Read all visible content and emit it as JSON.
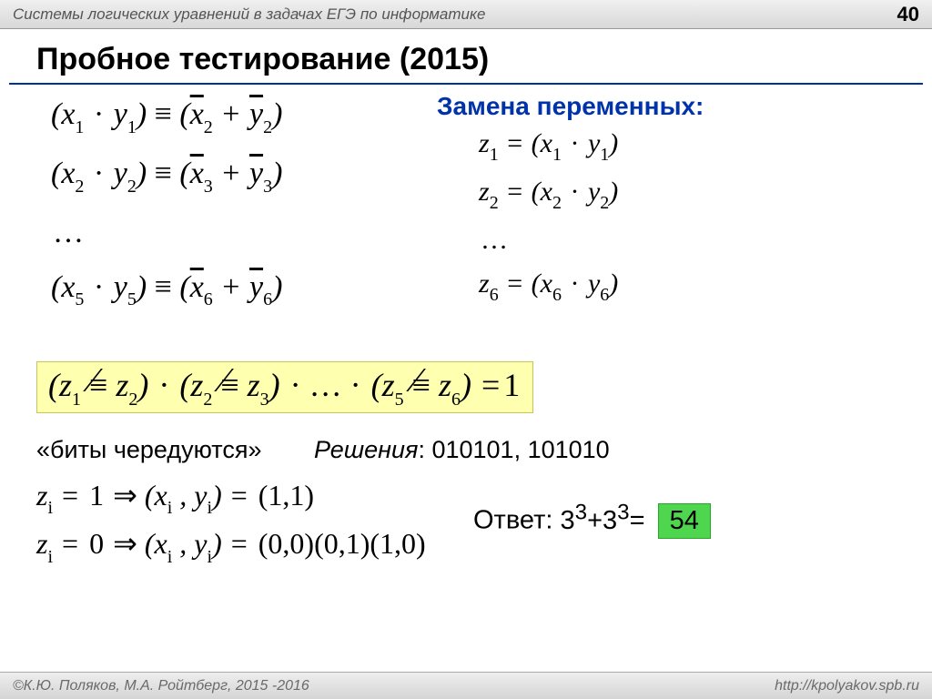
{
  "header": {
    "title": "Системы логических уравнений в задачах ЕГЭ по информатике",
    "page": "40"
  },
  "title": "Пробное тестирование (2015)",
  "sub_header": "Замена переменных:",
  "left_eq": {
    "r1": {
      "xi": "1",
      "yi": "1",
      "xj": "2",
      "yj": "2"
    },
    "r2": {
      "xi": "2",
      "yi": "2",
      "xj": "3",
      "yj": "3"
    },
    "dots": "…",
    "r3": {
      "xi": "5",
      "yi": "5",
      "xj": "6",
      "yj": "6"
    }
  },
  "right_eq": {
    "r1": {
      "zi": "1",
      "xi": "1",
      "yi": "1"
    },
    "r2": {
      "zi": "2",
      "xi": "2",
      "yi": "2"
    },
    "dots": "…",
    "r3": {
      "zi": "6",
      "xi": "6",
      "yi": "6"
    }
  },
  "hl": {
    "p1a": "1",
    "p1b": "2",
    "p2a": "2",
    "p2b": "3",
    "p3a": "5",
    "p3b": "6",
    "eq": "1"
  },
  "bits": {
    "label": "«биты чередуются»",
    "sol_label": "Решения",
    "sol": "010101, 101010"
  },
  "imp": {
    "r1": {
      "zv": "1",
      "pair": "(1,1)"
    },
    "r2": {
      "zv": "0",
      "pair": "(0,0)(0,1)(1,0)"
    }
  },
  "answer": {
    "label": "Ответ",
    "expr_a": "3",
    "expr_ea": "3",
    "expr_b": "3",
    "expr_eb": "3",
    "value": "54"
  },
  "footer": {
    "left": "©К.Ю. Поляков, М.А. Ройтберг, 2015 -2016",
    "right": "http://kpolyakov.spb.ru"
  }
}
